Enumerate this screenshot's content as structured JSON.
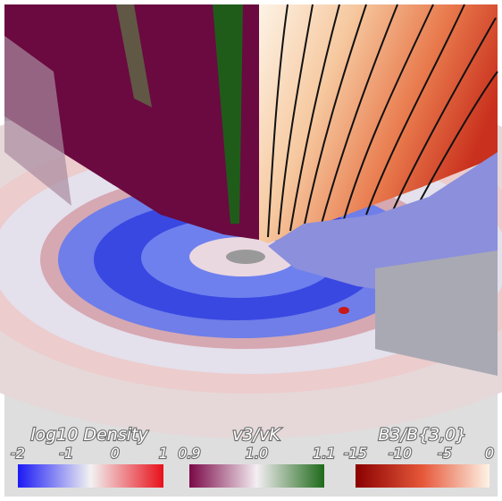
{
  "colorbars": [
    {
      "title": "log10 Density",
      "ticks": [
        "-2",
        "-1",
        "0",
        "1"
      ]
    },
    {
      "title": "v3/vK",
      "ticks": [
        "0.9",
        "1.0",
        "1.1"
      ]
    },
    {
      "title": "B3/B{3,0}",
      "ticks": [
        "-15",
        "-10",
        "-5",
        "0"
      ]
    }
  ]
}
